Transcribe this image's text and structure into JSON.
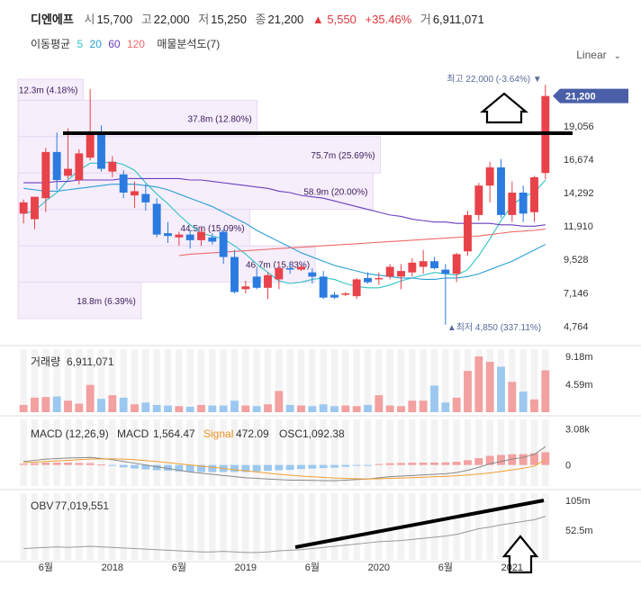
{
  "header": {
    "name": "디엔에프",
    "open_label": "시",
    "open": "15,700",
    "high_label": "고",
    "high": "22,000",
    "low_label": "저",
    "low": "15,250",
    "close_label": "종",
    "close": "21,200",
    "change": "▲ 5,550",
    "change_pct": "+35.46%",
    "volume_label": "거",
    "volume": "6,911,071"
  },
  "ma_legend": {
    "label": "이동평균",
    "periods": [
      "5",
      "20",
      "60",
      "120"
    ],
    "colors": [
      "#2ec4c4",
      "#2a9fd6",
      "#6a3fbf",
      "#ef6b6b"
    ],
    "vp_label": "매물분석도(7)"
  },
  "scale_selector": "Linear",
  "colors": {
    "up": "#e8424a",
    "down": "#2b7be0",
    "up_vol": "#f2a0a0",
    "down_vol": "#9cc8f0",
    "current": "#4a5fa8"
  },
  "chart_data": {
    "type": "candlestick",
    "price_axis": {
      "ticks": [
        4764,
        7146,
        9528,
        11910,
        14292,
        16674,
        19056
      ],
      "tick_labels": [
        "4,764",
        "7,146",
        "9,528",
        "11,910",
        "14,292",
        "16,674",
        "19,056"
      ],
      "range": [
        3500,
        22400
      ]
    },
    "current_price": {
      "value": 21200,
      "label": "21,200"
    },
    "max_label": "최고 22,000 (-3.64%) ▼",
    "min_label": "▲최저 4,850 (337.11%)",
    "x_labels": [
      "6월",
      "2018",
      "6월",
      "2019",
      "6월",
      "2020",
      "6월",
      "2021"
    ],
    "x_label_pos": [
      2.5,
      8.5,
      14.5,
      20.5,
      26.5,
      32.5,
      38.5,
      44.5
    ],
    "candles": [
      {
        "o": 12800,
        "h": 13800,
        "l": 12100,
        "c": 13600
      },
      {
        "o": 12400,
        "h": 14000,
        "l": 11700,
        "c": 14000
      },
      {
        "o": 13900,
        "h": 17500,
        "l": 12900,
        "c": 17200
      },
      {
        "o": 17200,
        "h": 18600,
        "l": 14500,
        "c": 15200
      },
      {
        "o": 15500,
        "h": 18900,
        "l": 15300,
        "c": 16000
      },
      {
        "o": 15200,
        "h": 17400,
        "l": 14900,
        "c": 17100
      },
      {
        "o": 16800,
        "h": 21700,
        "l": 16600,
        "c": 18600
      },
      {
        "o": 18600,
        "h": 19100,
        "l": 15800,
        "c": 16000
      },
      {
        "o": 15800,
        "h": 16900,
        "l": 15400,
        "c": 16500
      },
      {
        "o": 15600,
        "h": 15900,
        "l": 13900,
        "c": 14300
      },
      {
        "o": 14100,
        "h": 15100,
        "l": 13200,
        "c": 14400
      },
      {
        "o": 14200,
        "h": 14900,
        "l": 13000,
        "c": 13600
      },
      {
        "o": 13500,
        "h": 13900,
        "l": 11100,
        "c": 11300
      },
      {
        "o": 11400,
        "h": 12200,
        "l": 10700,
        "c": 11200
      },
      {
        "o": 11100,
        "h": 11500,
        "l": 10500,
        "c": 11300
      },
      {
        "o": 11300,
        "h": 11600,
        "l": 10300,
        "c": 10900
      },
      {
        "o": 10900,
        "h": 11800,
        "l": 10500,
        "c": 11500
      },
      {
        "o": 11100,
        "h": 11400,
        "l": 10600,
        "c": 10800
      },
      {
        "o": 11500,
        "h": 11700,
        "l": 9200,
        "c": 9700
      },
      {
        "o": 9700,
        "h": 10200,
        "l": 7100,
        "c": 7200
      },
      {
        "o": 7400,
        "h": 8000,
        "l": 7100,
        "c": 7600
      },
      {
        "o": 8300,
        "h": 8900,
        "l": 7400,
        "c": 7500
      },
      {
        "o": 7500,
        "h": 8600,
        "l": 6700,
        "c": 8400
      },
      {
        "o": 8100,
        "h": 9300,
        "l": 7400,
        "c": 8900
      },
      {
        "o": 8900,
        "h": 9300,
        "l": 8500,
        "c": 8800
      },
      {
        "o": 8800,
        "h": 9100,
        "l": 8700,
        "c": 9000
      },
      {
        "o": 8600,
        "h": 8900,
        "l": 7800,
        "c": 8300
      },
      {
        "o": 8300,
        "h": 8700,
        "l": 6700,
        "c": 6800
      },
      {
        "o": 7000,
        "h": 7200,
        "l": 6700,
        "c": 6800
      },
      {
        "o": 7000,
        "h": 7200,
        "l": 6900,
        "c": 7100
      },
      {
        "o": 6900,
        "h": 8200,
        "l": 6700,
        "c": 8100
      },
      {
        "o": 8200,
        "h": 8600,
        "l": 7800,
        "c": 7900
      },
      {
        "o": 8200,
        "h": 8600,
        "l": 7700,
        "c": 8200
      },
      {
        "o": 8300,
        "h": 9200,
        "l": 8100,
        "c": 9000
      },
      {
        "o": 8300,
        "h": 9200,
        "l": 7400,
        "c": 8700
      },
      {
        "o": 8600,
        "h": 9600,
        "l": 8300,
        "c": 9300
      },
      {
        "o": 9000,
        "h": 10200,
        "l": 8500,
        "c": 9400
      },
      {
        "o": 9400,
        "h": 9700,
        "l": 8800,
        "c": 8900
      },
      {
        "o": 8800,
        "h": 9200,
        "l": 4850,
        "c": 8500
      },
      {
        "o": 8500,
        "h": 10000,
        "l": 7900,
        "c": 9900
      },
      {
        "o": 10100,
        "h": 13000,
        "l": 9800,
        "c": 12700
      },
      {
        "o": 12700,
        "h": 15000,
        "l": 12300,
        "c": 14800
      },
      {
        "o": 14800,
        "h": 16500,
        "l": 13600,
        "c": 16100
      },
      {
        "o": 16100,
        "h": 16700,
        "l": 12500,
        "c": 12700
      },
      {
        "o": 12700,
        "h": 15100,
        "l": 12200,
        "c": 14300
      },
      {
        "o": 14300,
        "h": 14800,
        "l": 12200,
        "c": 12800
      },
      {
        "o": 12900,
        "h": 15500,
        "l": 12200,
        "c": 15400
      },
      {
        "o": 15700,
        "h": 22000,
        "l": 15250,
        "c": 21200
      }
    ],
    "ma_series": [
      {
        "period": "5",
        "values": [
          12800,
          13000,
          13700,
          14300,
          15200,
          15900,
          16400,
          16400,
          16500,
          16300,
          15900,
          15000,
          14200,
          13500,
          12700,
          12000,
          11400,
          11200,
          11000,
          10500,
          9900,
          9200,
          8600,
          8000,
          7800,
          7900,
          8100,
          8200,
          8100,
          7800,
          7600,
          7500,
          7500,
          7700,
          8000,
          8200,
          8400,
          8600,
          8500,
          8400,
          8800,
          9800,
          11000,
          12300,
          13400,
          14000,
          14300,
          15200
        ]
      },
      {
        "period": "20",
        "values": [
          14600,
          14500,
          14400,
          14400,
          14500,
          14600,
          14700,
          14800,
          14900,
          14900,
          14900,
          14800,
          14700,
          14500,
          14200,
          13900,
          13600,
          13300,
          12900,
          12500,
          12100,
          11600,
          11200,
          10800,
          10400,
          10000,
          9700,
          9400,
          9100,
          8900,
          8700,
          8500,
          8400,
          8300,
          8200,
          8200,
          8100,
          8100,
          8200,
          8200,
          8300,
          8500,
          8800,
          9100,
          9400,
          9800,
          10200,
          10600
        ]
      },
      {
        "period": "60",
        "values": [
          15000,
          15000,
          15000,
          15100,
          15100,
          15200,
          15200,
          15200,
          15200,
          15300,
          15300,
          15300,
          15300,
          15300,
          15300,
          15200,
          15200,
          15100,
          15000,
          14900,
          14800,
          14700,
          14600,
          14400,
          14300,
          14100,
          14000,
          13900,
          13700,
          13500,
          13300,
          13100,
          12900,
          12700,
          12600,
          12400,
          12300,
          12200,
          12200,
          12100,
          12100,
          12100,
          12100,
          12000,
          12000,
          11900,
          11900,
          12000
        ]
      },
      {
        "period": "120",
        "values": [
          null,
          null,
          null,
          null,
          null,
          null,
          null,
          null,
          null,
          null,
          null,
          null,
          null,
          null,
          9800,
          9900,
          9950,
          10000,
          10050,
          10100,
          10150,
          10200,
          10250,
          10300,
          10350,
          10400,
          10450,
          10500,
          10550,
          10600,
          10650,
          10700,
          10750,
          10800,
          10850,
          10900,
          10950,
          11000,
          11050,
          11100,
          11150,
          11200,
          11300,
          11400,
          11500,
          11550,
          11600,
          11700
        ]
      }
    ],
    "volume_profile": [
      {
        "label": "18.8m (6.39%)",
        "from": 5300,
        "to": 7900
      },
      {
        "label": "46.7m (15.83%)",
        "from": 7900,
        "to": 10500
      },
      {
        "label": "44.5m (15.09%)",
        "from": 10500,
        "to": 13100
      },
      {
        "label": "58.9m (20.00%)",
        "from": 13100,
        "to": 15700
      },
      {
        "label": "75.7m (25.69%)",
        "from": 15700,
        "to": 18300
      },
      {
        "label": "37.8m (12.80%)",
        "from": 18300,
        "to": 20900
      },
      {
        "label": "12.3m (4.18%)",
        "from": 20900,
        "to": 22400
      }
    ],
    "volume_profile_widths": [
      0.34,
      0.82,
      0.64,
      0.98,
      1.0,
      0.66,
      0.18
    ],
    "volume": {
      "label": "거래량",
      "value": "6,911,071",
      "tick_labels": [
        "9.18m",
        "4.59m"
      ],
      "ticks": [
        9.18,
        4.59
      ],
      "max": 9.5,
      "values": [
        1.2,
        2.4,
        2.5,
        2.6,
        1.9,
        1.4,
        4.5,
        2.2,
        2.8,
        2.4,
        1.3,
        1.6,
        1.2,
        1.1,
        1.0,
        0.9,
        1.2,
        1.1,
        1.1,
        1.9,
        1.1,
        1.0,
        1.3,
        3.5,
        1.2,
        1.1,
        1.0,
        1.3,
        1.0,
        1.1,
        1.0,
        1.2,
        2.8,
        1.1,
        1.0,
        1.9,
        1.9,
        4.4,
        1.6,
        2.4,
        6.8,
        9.2,
        8.3,
        7.5,
        5.0,
        3.4,
        2.1,
        6.9
      ]
    },
    "macd": {
      "label": "MACD (12,26,9)",
      "macd_label": "MACD",
      "macd_value": "1,564.47",
      "signal_label": "Signal",
      "signal_value": "472.09",
      "osc_label": "OSC",
      "osc_value": "1,092.38",
      "tick_labels": [
        "3.08k",
        "0"
      ],
      "ticks": [
        3080,
        0
      ],
      "range": [
        -1800,
        3900
      ],
      "macd_values": [
        300,
        400,
        500,
        550,
        600,
        620,
        650,
        560,
        450,
        300,
        150,
        0,
        -150,
        -300,
        -450,
        -600,
        -700,
        -800,
        -900,
        -1000,
        -1100,
        -1150,
        -1200,
        -1250,
        -1300,
        -1300,
        -1320,
        -1340,
        -1350,
        -1300,
        -1250,
        -1200,
        -1100,
        -1000,
        -950,
        -900,
        -850,
        -800,
        -750,
        -650,
        -450,
        -200,
        100,
        300,
        500,
        650,
        900,
        1564
      ],
      "signal_values": [
        200,
        250,
        300,
        350,
        400,
        450,
        500,
        520,
        520,
        500,
        450,
        380,
        300,
        200,
        100,
        0,
        -100,
        -200,
        -300,
        -400,
        -500,
        -600,
        -700,
        -800,
        -880,
        -950,
        -1010,
        -1070,
        -1120,
        -1150,
        -1180,
        -1190,
        -1180,
        -1150,
        -1120,
        -1090,
        -1050,
        -1010,
        -970,
        -920,
        -860,
        -780,
        -680,
        -560,
        -420,
        -280,
        -100,
        472
      ],
      "osc_values": [
        100,
        150,
        200,
        200,
        200,
        170,
        150,
        40,
        -70,
        -200,
        -300,
        -380,
        -450,
        -500,
        -550,
        -600,
        -600,
        -600,
        -600,
        -600,
        -600,
        -550,
        -500,
        -450,
        -420,
        -350,
        -310,
        -270,
        -230,
        -150,
        -70,
        -10,
        80,
        150,
        170,
        190,
        200,
        210,
        220,
        270,
        410,
        580,
        780,
        860,
        920,
        930,
        1000,
        1092
      ]
    },
    "obv": {
      "label": "OBV",
      "value": "77,019,551",
      "tick_labels": [
        "105m",
        "52.5m"
      ],
      "ticks": [
        105,
        52.5
      ],
      "range": [
        0,
        118
      ],
      "values": [
        20,
        21,
        22,
        23,
        22,
        23,
        24,
        23,
        22,
        21,
        20,
        19,
        18,
        17,
        16,
        15,
        14,
        14,
        15,
        14,
        13,
        13,
        14,
        16,
        17,
        18,
        20,
        22,
        24,
        26,
        28,
        30,
        32,
        33,
        34,
        36,
        38,
        40,
        42,
        45,
        50,
        55,
        58,
        62,
        65,
        68,
        71,
        77
      ]
    }
  }
}
